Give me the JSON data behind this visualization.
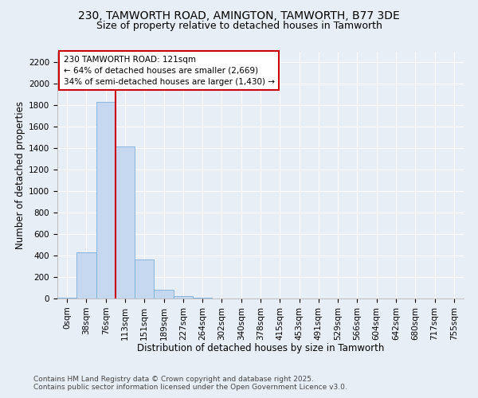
{
  "title_line1": "230, TAMWORTH ROAD, AMINGTON, TAMWORTH, B77 3DE",
  "title_line2": "Size of property relative to detached houses in Tamworth",
  "xlabel": "Distribution of detached houses by size in Tamworth",
  "ylabel": "Number of detached properties",
  "bar_color": "#c5d8f0",
  "bar_edgecolor": "#7aaed6",
  "vline_color": "#cc0000",
  "vline_x": 2.5,
  "annotation_text": "230 TAMWORTH ROAD: 121sqm\n← 64% of detached houses are smaller (2,669)\n34% of semi-detached houses are larger (1,430) →",
  "annotation_box_color": "#ffffff",
  "annotation_box_edgecolor": "#cc0000",
  "categories": [
    "0sqm",
    "38sqm",
    "76sqm",
    "113sqm",
    "151sqm",
    "189sqm",
    "227sqm",
    "264sqm",
    "302sqm",
    "340sqm",
    "378sqm",
    "415sqm",
    "453sqm",
    "491sqm",
    "529sqm",
    "566sqm",
    "604sqm",
    "642sqm",
    "680sqm",
    "717sqm",
    "755sqm"
  ],
  "values": [
    5,
    430,
    1830,
    1420,
    360,
    80,
    25,
    5,
    0,
    0,
    0,
    0,
    0,
    0,
    0,
    0,
    0,
    0,
    0,
    0,
    0
  ],
  "ylim": [
    0,
    2300
  ],
  "yticks": [
    0,
    200,
    400,
    600,
    800,
    1000,
    1200,
    1400,
    1600,
    1800,
    2000,
    2200
  ],
  "background_color": "#e8eef6",
  "grid_color": "#d0dae8",
  "footer_line1": "Contains HM Land Registry data © Crown copyright and database right 2025.",
  "footer_line2": "Contains public sector information licensed under the Open Government Licence v3.0.",
  "title_fontsize": 10,
  "subtitle_fontsize": 9,
  "axis_label_fontsize": 8.5,
  "tick_fontsize": 7.5,
  "annotation_fontsize": 7.5,
  "footer_fontsize": 6.5
}
